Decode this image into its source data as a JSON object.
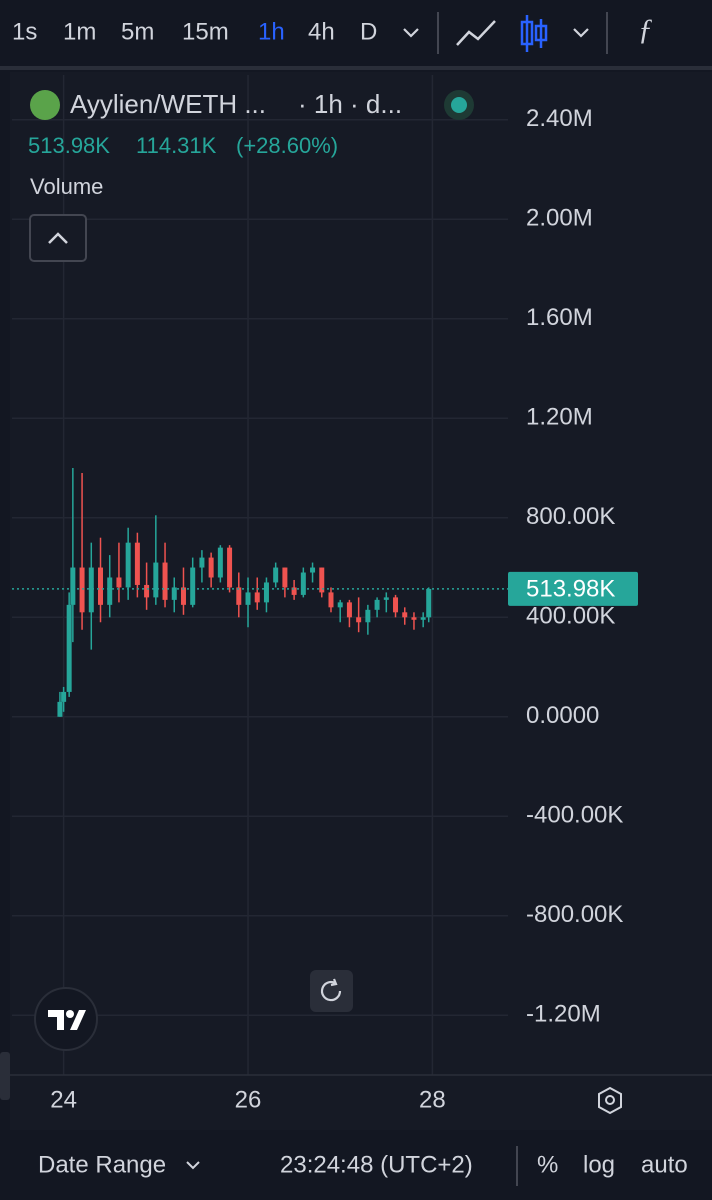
{
  "toolbar": {
    "intervals": [
      "1s",
      "1m",
      "5m",
      "15m",
      "1h",
      "4h",
      "D"
    ],
    "active": "1h"
  },
  "legend": {
    "symbol": "Ayylien/WETH ...",
    "meta": "· 1h · d...",
    "last": "513.98K",
    "change": "114.31K",
    "change_pct": "(+28.60%)",
    "indicator": "Volume"
  },
  "footer": {
    "date_range": "Date Range",
    "time": "23:24:48 (UTC+2)",
    "percent": "%",
    "log": "log",
    "auto": "auto"
  },
  "chart_data": {
    "type": "candlestick",
    "up_color": "#26a69a",
    "down_color": "#ef5350",
    "grid": true,
    "last_price": 513980,
    "last_price_label": "513.98K",
    "xlim": [
      23.44,
      28.82
    ],
    "xticks": [
      24,
      26,
      28
    ],
    "ylim": [
      -1440000,
      2580000
    ],
    "yticks": [
      {
        "value": 2400000,
        "label": "2.40M"
      },
      {
        "value": 2000000,
        "label": "2.00M"
      },
      {
        "value": 1600000,
        "label": "1.60M"
      },
      {
        "value": 1200000,
        "label": "1.20M"
      },
      {
        "value": 800000,
        "label": "800.00K"
      },
      {
        "value": 400000,
        "label": "400.00K"
      },
      {
        "value": 0,
        "label": "0.0000"
      },
      {
        "value": -400000,
        "label": "-400.00K"
      },
      {
        "value": -800000,
        "label": "-800.00K"
      },
      {
        "value": -1200000,
        "label": "-1.20M"
      }
    ],
    "x": [
      23.96,
      24.0,
      24.06,
      24.1,
      24.2,
      24.3,
      24.4,
      24.5,
      24.6,
      24.7,
      24.8,
      24.9,
      25.0,
      25.1,
      25.2,
      25.3,
      25.4,
      25.5,
      25.6,
      25.7,
      25.8,
      25.9,
      26.0,
      26.1,
      26.2,
      26.3,
      26.4,
      26.5,
      26.6,
      26.7,
      26.8,
      26.9,
      27.0,
      27.1,
      27.2,
      27.3,
      27.4,
      27.5,
      27.6,
      27.7,
      27.8,
      27.9,
      27.96
    ],
    "open": [
      0,
      60000,
      100000,
      450000,
      600000,
      420000,
      600000,
      450000,
      560000,
      520000,
      700000,
      530000,
      480000,
      620000,
      470000,
      520000,
      450000,
      600000,
      640000,
      560000,
      680000,
      520000,
      450000,
      500000,
      460000,
      540000,
      600000,
      520000,
      490000,
      580000,
      600000,
      500000,
      440000,
      460000,
      400000,
      380000,
      430000,
      470000,
      480000,
      420000,
      400000,
      390000,
      400000
    ],
    "high": [
      100000,
      120000,
      500000,
      1000000,
      980000,
      700000,
      720000,
      650000,
      700000,
      760000,
      740000,
      620000,
      810000,
      700000,
      560000,
      600000,
      640000,
      670000,
      660000,
      690000,
      690000,
      580000,
      560000,
      560000,
      560000,
      620000,
      600000,
      550000,
      600000,
      620000,
      600000,
      520000,
      470000,
      470000,
      480000,
      450000,
      480000,
      500000,
      490000,
      440000,
      420000,
      420000,
      520000
    ],
    "low": [
      0,
      20000,
      80000,
      300000,
      350000,
      270000,
      380000,
      400000,
      460000,
      470000,
      480000,
      430000,
      450000,
      440000,
      420000,
      410000,
      440000,
      540000,
      520000,
      540000,
      500000,
      400000,
      360000,
      430000,
      420000,
      520000,
      480000,
      470000,
      480000,
      540000,
      480000,
      420000,
      380000,
      360000,
      340000,
      330000,
      400000,
      420000,
      400000,
      370000,
      350000,
      360000,
      380000
    ],
    "close": [
      60000,
      100000,
      450000,
      600000,
      420000,
      600000,
      450000,
      560000,
      520000,
      700000,
      530000,
      480000,
      620000,
      470000,
      520000,
      450000,
      600000,
      640000,
      560000,
      680000,
      520000,
      450000,
      500000,
      460000,
      540000,
      600000,
      520000,
      490000,
      580000,
      600000,
      500000,
      440000,
      460000,
      400000,
      380000,
      430000,
      470000,
      480000,
      420000,
      400000,
      390000,
      400000,
      513980
    ]
  }
}
